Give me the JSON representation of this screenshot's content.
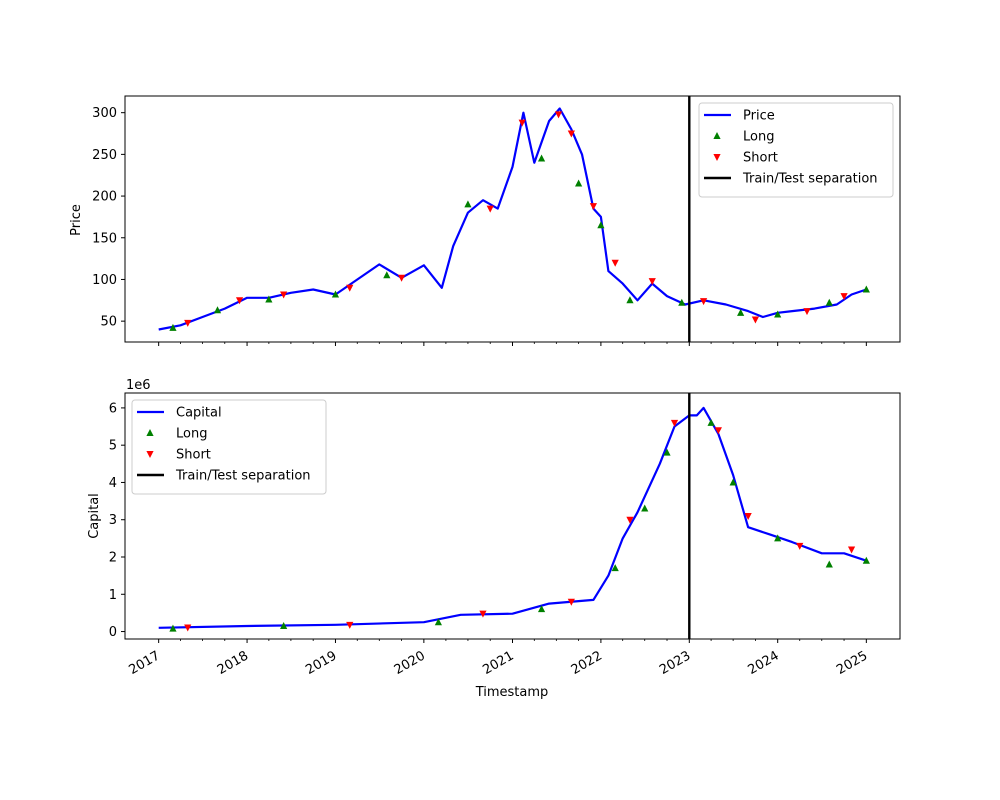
{
  "chart_data": [
    {
      "type": "line",
      "ylabel": "Price",
      "xlabel": "",
      "x_ticks": [
        "2017",
        "2018",
        "2019",
        "2020",
        "2021",
        "2022",
        "2023",
        "2024",
        "2025"
      ],
      "xlim": [
        "2016-08-15",
        "2025-05-20"
      ],
      "ylim": [
        25,
        320
      ],
      "yticks": [
        50,
        100,
        150,
        200,
        250,
        300
      ],
      "grid": false,
      "legend_position": "top-right",
      "separation_date": "2023-01-01",
      "colors": {
        "line": "#0000ff",
        "long": "#008000",
        "short": "#ff0000",
        "separator": "#000000"
      },
      "legend": [
        "Price",
        "Long",
        "Short",
        "Train/Test separation"
      ],
      "series": [
        {
          "name": "Price",
          "points": [
            [
              "2017-01-01",
              40
            ],
            [
              "2017-04-01",
              45
            ],
            [
              "2017-07-01",
              55
            ],
            [
              "2017-10-01",
              65
            ],
            [
              "2018-01-01",
              78
            ],
            [
              "2018-04-01",
              78
            ],
            [
              "2018-07-01",
              84
            ],
            [
              "2018-10-01",
              88
            ],
            [
              "2019-01-01",
              82
            ],
            [
              "2019-04-01",
              100
            ],
            [
              "2019-07-01",
              118
            ],
            [
              "2019-10-01",
              102
            ],
            [
              "2020-01-01",
              117
            ],
            [
              "2020-03-15",
              90
            ],
            [
              "2020-05-01",
              140
            ],
            [
              "2020-07-01",
              180
            ],
            [
              "2020-09-01",
              195
            ],
            [
              "2020-11-01",
              185
            ],
            [
              "2021-01-01",
              235
            ],
            [
              "2021-02-15",
              300
            ],
            [
              "2021-04-01",
              240
            ],
            [
              "2021-06-01",
              290
            ],
            [
              "2021-07-15",
              305
            ],
            [
              "2021-09-01",
              280
            ],
            [
              "2021-10-15",
              250
            ],
            [
              "2021-12-01",
              185
            ],
            [
              "2022-01-01",
              175
            ],
            [
              "2022-02-01",
              110
            ],
            [
              "2022-04-01",
              95
            ],
            [
              "2022-06-01",
              75
            ],
            [
              "2022-08-01",
              95
            ],
            [
              "2022-10-01",
              80
            ],
            [
              "2022-12-15",
              70
            ],
            [
              "2023-03-01",
              75
            ],
            [
              "2023-06-01",
              70
            ],
            [
              "2023-09-01",
              62
            ],
            [
              "2023-11-01",
              55
            ],
            [
              "2024-01-01",
              60
            ],
            [
              "2024-03-01",
              62
            ],
            [
              "2024-06-01",
              65
            ],
            [
              "2024-09-01",
              70
            ],
            [
              "2024-11-01",
              82
            ],
            [
              "2025-01-01",
              88
            ]
          ]
        },
        {
          "name": "Long",
          "points": [
            [
              "2017-03-01",
              42
            ],
            [
              "2017-09-01",
              63
            ],
            [
              "2018-04-01",
              76
            ],
            [
              "2019-01-01",
              82
            ],
            [
              "2019-08-01",
              105
            ],
            [
              "2020-07-01",
              190
            ],
            [
              "2021-05-01",
              245
            ],
            [
              "2021-10-01",
              215
            ],
            [
              "2022-01-01",
              165
            ],
            [
              "2022-05-01",
              75
            ],
            [
              "2022-12-01",
              72
            ],
            [
              "2023-08-01",
              60
            ],
            [
              "2024-01-01",
              58
            ],
            [
              "2024-08-01",
              72
            ],
            [
              "2025-01-01",
              88
            ]
          ]
        },
        {
          "name": "Short",
          "points": [
            [
              "2017-05-01",
              48
            ],
            [
              "2017-12-01",
              75
            ],
            [
              "2018-06-01",
              82
            ],
            [
              "2019-03-01",
              90
            ],
            [
              "2019-10-01",
              102
            ],
            [
              "2020-10-01",
              185
            ],
            [
              "2021-02-10",
              288
            ],
            [
              "2021-07-10",
              298
            ],
            [
              "2021-09-01",
              275
            ],
            [
              "2021-12-01",
              188
            ],
            [
              "2022-03-01",
              120
            ],
            [
              "2022-08-01",
              98
            ],
            [
              "2023-03-01",
              74
            ],
            [
              "2023-10-01",
              52
            ],
            [
              "2024-05-01",
              62
            ],
            [
              "2024-10-01",
              80
            ]
          ]
        },
        {
          "name": "Train/Test separation",
          "points": [
            [
              "2023-01-01",
              25
            ],
            [
              "2023-01-01",
              320
            ]
          ]
        }
      ]
    },
    {
      "type": "line",
      "ylabel": "Capital",
      "xlabel": "Timestamp",
      "x_ticks": [
        "2017",
        "2018",
        "2019",
        "2020",
        "2021",
        "2022",
        "2023",
        "2024",
        "2025"
      ],
      "xlim": [
        "2016-08-15",
        "2025-05-20"
      ],
      "ylim": [
        -200000,
        6400000
      ],
      "yticks": [
        0,
        1,
        2,
        3,
        4,
        5,
        6
      ],
      "y_offset_label": "1e6",
      "grid": false,
      "legend_position": "top-left",
      "separation_date": "2023-01-01",
      "colors": {
        "line": "#0000ff",
        "long": "#008000",
        "short": "#ff0000",
        "separator": "#000000"
      },
      "legend": [
        "Capital",
        "Long",
        "Short",
        "Train/Test separation"
      ],
      "series": [
        {
          "name": "Capital",
          "points": [
            [
              "2017-01-01",
              100000
            ],
            [
              "2018-01-01",
              150000
            ],
            [
              "2019-01-01",
              180000
            ],
            [
              "2020-01-01",
              250000
            ],
            [
              "2020-06-01",
              450000
            ],
            [
              "2021-01-01",
              480000
            ],
            [
              "2021-06-01",
              750000
            ],
            [
              "2021-12-01",
              850000
            ],
            [
              "2022-02-01",
              1500000
            ],
            [
              "2022-04-01",
              2500000
            ],
            [
              "2022-06-01",
              3200000
            ],
            [
              "2022-09-01",
              4500000
            ],
            [
              "2022-11-01",
              5500000
            ],
            [
              "2023-01-01",
              5800000
            ],
            [
              "2023-02-01",
              5800000
            ],
            [
              "2023-03-01",
              6000000
            ],
            [
              "2023-05-01",
              5300000
            ],
            [
              "2023-07-01",
              4200000
            ],
            [
              "2023-09-01",
              2800000
            ],
            [
              "2023-12-01",
              2600000
            ],
            [
              "2024-03-01",
              2400000
            ],
            [
              "2024-07-01",
              2100000
            ],
            [
              "2024-10-01",
              2100000
            ],
            [
              "2025-01-01",
              1900000
            ]
          ]
        },
        {
          "name": "Long",
          "points": [
            [
              "2017-03-01",
              80000
            ],
            [
              "2018-06-01",
              150000
            ],
            [
              "2020-03-01",
              250000
            ],
            [
              "2021-05-01",
              600000
            ],
            [
              "2022-03-01",
              1700000
            ],
            [
              "2022-07-01",
              3300000
            ],
            [
              "2022-10-01",
              4800000
            ],
            [
              "2023-04-01",
              5600000
            ],
            [
              "2023-07-01",
              4000000
            ],
            [
              "2024-01-01",
              2500000
            ],
            [
              "2024-08-01",
              1800000
            ],
            [
              "2025-01-01",
              1900000
            ]
          ]
        },
        {
          "name": "Short",
          "points": [
            [
              "2017-05-01",
              110000
            ],
            [
              "2019-03-01",
              180000
            ],
            [
              "2020-09-01",
              480000
            ],
            [
              "2021-09-01",
              800000
            ],
            [
              "2022-05-01",
              3000000
            ],
            [
              "2022-11-01",
              5600000
            ],
            [
              "2023-05-01",
              5400000
            ],
            [
              "2023-09-01",
              3100000
            ],
            [
              "2024-04-01",
              2300000
            ],
            [
              "2024-11-01",
              2200000
            ]
          ]
        },
        {
          "name": "Train/Test separation",
          "points": [
            [
              "2023-01-01",
              -200000
            ],
            [
              "2023-01-01",
              6400000
            ]
          ]
        }
      ]
    }
  ]
}
